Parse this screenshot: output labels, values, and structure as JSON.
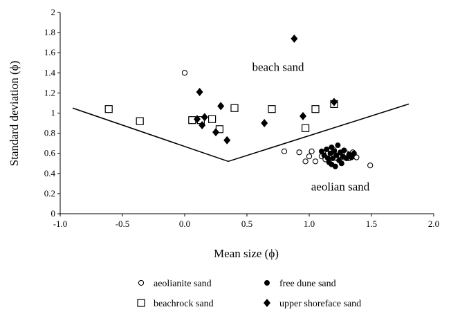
{
  "chart_data": {
    "type": "scatter",
    "xlabel": "Mean size (ϕ)",
    "ylabel": "Standard deviation (ϕ)",
    "xlim": [
      -1.0,
      2.0
    ],
    "ylim": [
      0,
      2
    ],
    "x_ticks": [
      "-1.0",
      "-0.5",
      "0.0",
      "0.5",
      "1.0",
      "1.5",
      "2.0"
    ],
    "y_ticks": [
      "0",
      "0.2",
      "0.4",
      "0.6",
      "0.8",
      "1",
      "1.2",
      "1.4",
      "1.6",
      "1.8",
      "2"
    ],
    "grid": false,
    "legend_position": "bottom",
    "annotations": [
      {
        "text": "beach sand",
        "x": 0.75,
        "y": 1.42
      },
      {
        "text": "aeolian sand",
        "x": 1.25,
        "y": 0.23
      }
    ],
    "boundary_line": [
      [
        -0.9,
        1.05
      ],
      [
        0.35,
        0.52
      ],
      [
        1.8,
        1.09
      ]
    ],
    "series": [
      {
        "name": "aeolianite sand",
        "marker": "circle-open",
        "points": [
          [
            0.0,
            1.4
          ],
          [
            0.8,
            0.62
          ],
          [
            0.92,
            0.61
          ],
          [
            0.97,
            0.52
          ],
          [
            1.0,
            0.57
          ],
          [
            1.02,
            0.62
          ],
          [
            1.05,
            0.52
          ],
          [
            1.1,
            0.57
          ],
          [
            1.13,
            0.54
          ],
          [
            1.15,
            0.6
          ],
          [
            1.18,
            0.57
          ],
          [
            1.2,
            0.63
          ],
          [
            1.22,
            0.55
          ],
          [
            1.25,
            0.58
          ],
          [
            1.28,
            0.56
          ],
          [
            1.3,
            0.6
          ],
          [
            1.32,
            0.55
          ],
          [
            1.35,
            0.61
          ],
          [
            1.38,
            0.56
          ],
          [
            1.49,
            0.48
          ]
        ]
      },
      {
        "name": "free dune sand",
        "marker": "circle-filled",
        "points": [
          [
            1.1,
            0.62
          ],
          [
            1.12,
            0.58
          ],
          [
            1.14,
            0.64
          ],
          [
            1.15,
            0.55
          ],
          [
            1.16,
            0.51
          ],
          [
            1.17,
            0.6
          ],
          [
            1.18,
            0.49
          ],
          [
            1.18,
            0.66
          ],
          [
            1.19,
            0.55
          ],
          [
            1.2,
            0.62
          ],
          [
            1.21,
            0.47
          ],
          [
            1.22,
            0.58
          ],
          [
            1.23,
            0.68
          ],
          [
            1.24,
            0.53
          ],
          [
            1.25,
            0.61
          ],
          [
            1.26,
            0.5
          ],
          [
            1.27,
            0.57
          ],
          [
            1.28,
            0.63
          ],
          [
            1.3,
            0.55
          ],
          [
            1.32,
            0.59
          ],
          [
            1.34,
            0.56
          ],
          [
            1.36,
            0.6
          ]
        ]
      },
      {
        "name": "beachrock sand",
        "marker": "square-open",
        "points": [
          [
            -0.61,
            1.04
          ],
          [
            -0.36,
            0.92
          ],
          [
            0.06,
            0.93
          ],
          [
            0.13,
            0.93
          ],
          [
            0.22,
            0.94
          ],
          [
            0.28,
            0.84
          ],
          [
            0.4,
            1.05
          ],
          [
            0.7,
            1.04
          ],
          [
            0.97,
            0.85
          ],
          [
            1.05,
            1.04
          ],
          [
            1.2,
            1.09
          ]
        ]
      },
      {
        "name": "upper shoreface sand",
        "marker": "diamond-filled",
        "points": [
          [
            0.1,
            0.94
          ],
          [
            0.12,
            1.21
          ],
          [
            0.14,
            0.88
          ],
          [
            0.16,
            0.96
          ],
          [
            0.25,
            0.81
          ],
          [
            0.29,
            1.07
          ],
          [
            0.34,
            0.73
          ],
          [
            0.64,
            0.9
          ],
          [
            0.88,
            1.74
          ],
          [
            0.95,
            0.97
          ],
          [
            1.2,
            1.11
          ]
        ]
      }
    ]
  }
}
